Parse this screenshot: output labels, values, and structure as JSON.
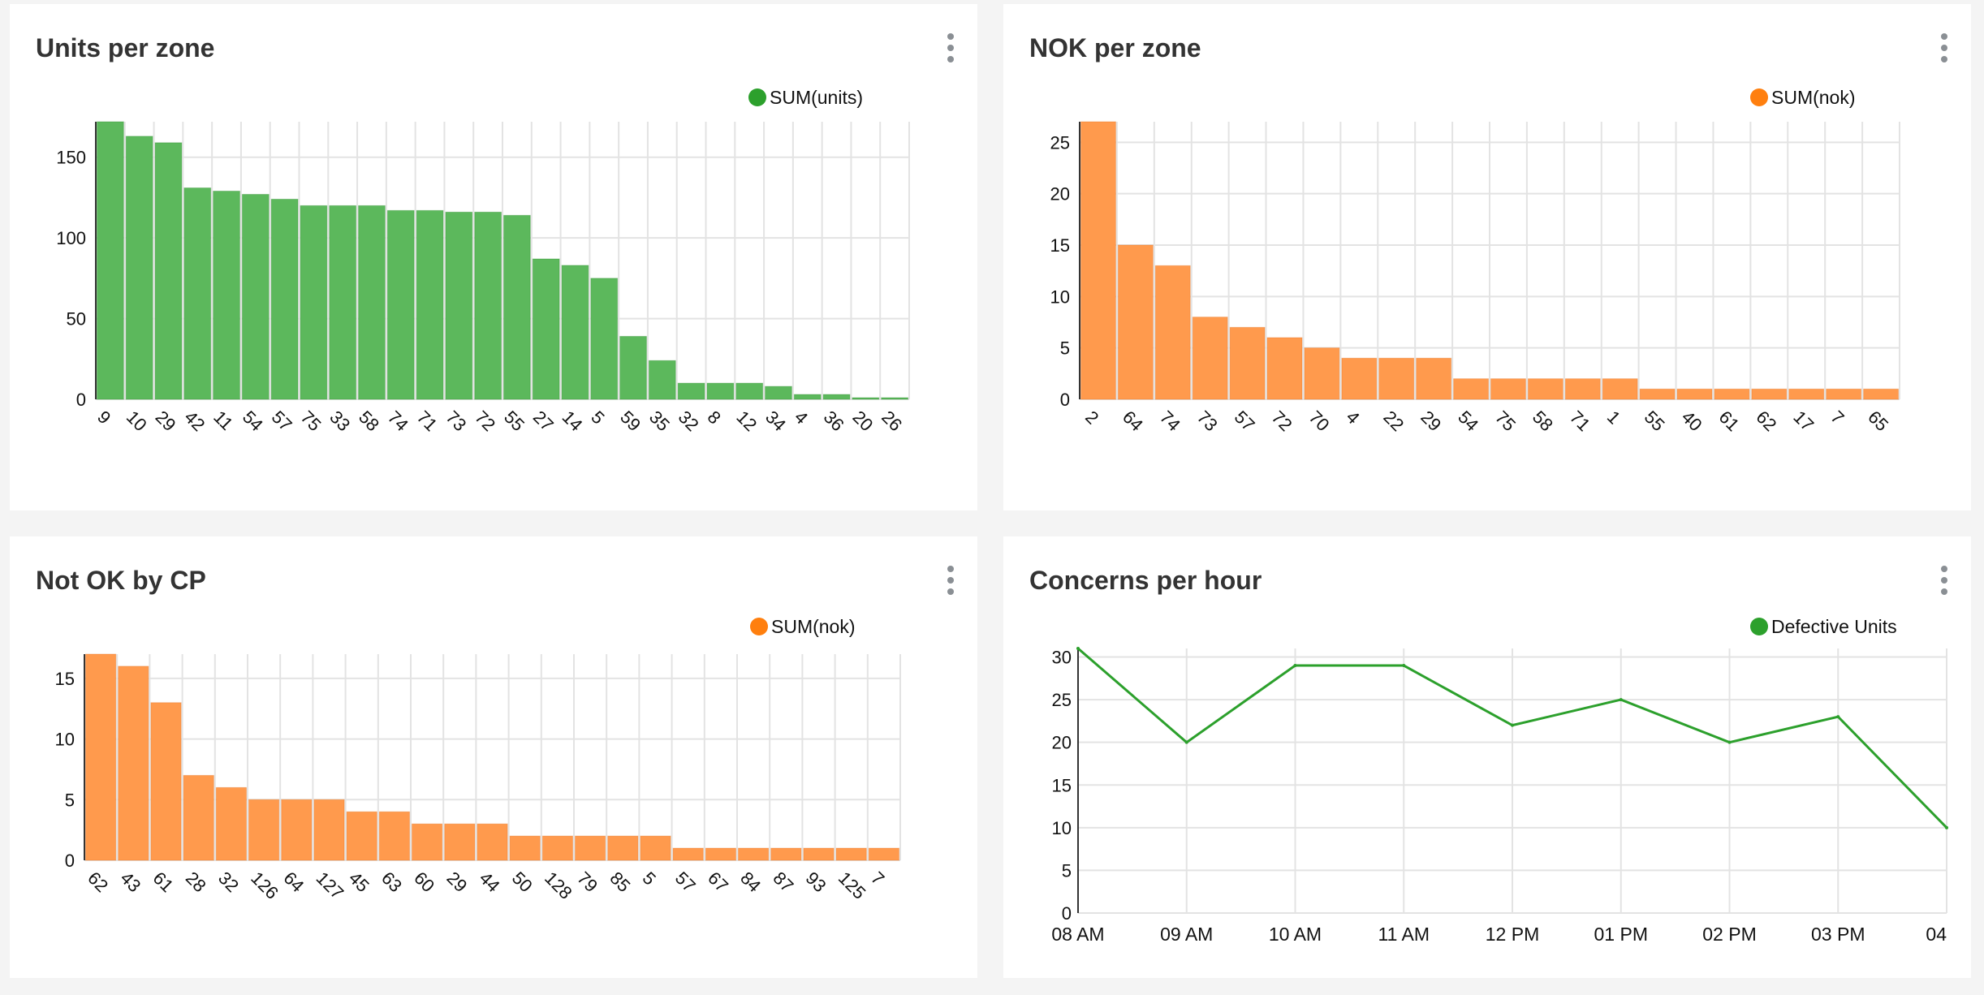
{
  "colors": {
    "green": "#2ca02c",
    "orange": "#ff7f0e"
  },
  "panels": [
    {
      "title": "Units per zone",
      "legend": "SUM(units)",
      "legend_color": "#2ca02c",
      "menu_icon": "kebab-menu-icon"
    },
    {
      "title": "NOK per zone",
      "legend": "SUM(nok)",
      "legend_color": "#ff7f0e",
      "menu_icon": "kebab-menu-icon"
    },
    {
      "title": "Not OK by CP",
      "legend": "SUM(nok)",
      "legend_color": "#ff7f0e",
      "menu_icon": "kebab-menu-icon"
    },
    {
      "title": "Concerns per hour",
      "legend": "Defective Units",
      "legend_color": "#2ca02c",
      "menu_icon": "kebab-menu-icon"
    }
  ],
  "chart_data": [
    {
      "type": "bar",
      "title": "Units per zone",
      "categories": [
        "9",
        "10",
        "29",
        "42",
        "11",
        "54",
        "57",
        "75",
        "33",
        "58",
        "74",
        "71",
        "73",
        "72",
        "55",
        "27",
        "14",
        "5",
        "59",
        "35",
        "32",
        "8",
        "12",
        "34",
        "4",
        "36",
        "20",
        "26"
      ],
      "series": [
        {
          "name": "SUM(units)",
          "values": [
            172,
            163,
            159,
            131,
            129,
            127,
            124,
            120,
            120,
            120,
            117,
            117,
            116,
            116,
            114,
            87,
            83,
            75,
            39,
            24,
            10,
            10,
            10,
            8,
            3,
            3,
            1,
            1
          ]
        }
      ],
      "ylim": [
        0,
        172
      ],
      "yticks": [
        0,
        50,
        100,
        150
      ],
      "grid": true,
      "legend_position": "top-right"
    },
    {
      "type": "bar",
      "title": "NOK per zone",
      "categories": [
        "2",
        "64",
        "74",
        "73",
        "57",
        "72",
        "70",
        "4",
        "22",
        "29",
        "54",
        "75",
        "58",
        "71",
        "1",
        "55",
        "40",
        "61",
        "62",
        "17",
        "7",
        "65"
      ],
      "series": [
        {
          "name": "SUM(nok)",
          "values": [
            27,
            15,
            13,
            8,
            7,
            6,
            5,
            4,
            4,
            4,
            2,
            2,
            2,
            2,
            2,
            1,
            1,
            1,
            1,
            1,
            1,
            1
          ]
        }
      ],
      "ylim": [
        0,
        27
      ],
      "yticks": [
        0,
        5,
        10,
        15,
        20,
        25
      ],
      "grid": true,
      "legend_position": "top-right"
    },
    {
      "type": "bar",
      "title": "Not OK by CP",
      "categories": [
        "62",
        "43",
        "61",
        "28",
        "32",
        "126",
        "64",
        "127",
        "45",
        "63",
        "60",
        "29",
        "44",
        "50",
        "128",
        "79",
        "85",
        "5",
        "57",
        "67",
        "84",
        "87",
        "93",
        "125",
        "7"
      ],
      "series": [
        {
          "name": "SUM(nok)",
          "values": [
            17,
            16,
            13,
            7,
            6,
            5,
            5,
            5,
            4,
            4,
            3,
            3,
            3,
            2,
            2,
            2,
            2,
            2,
            1,
            1,
            1,
            1,
            1,
            1,
            1
          ]
        }
      ],
      "ylim": [
        0,
        17
      ],
      "yticks": [
        0,
        5,
        10,
        15
      ],
      "grid": true,
      "legend_position": "top-right"
    },
    {
      "type": "line",
      "title": "Concerns per hour",
      "x": [
        "08 AM",
        "09 AM",
        "10 AM",
        "11 AM",
        "12 PM",
        "01 PM",
        "02 PM",
        "03 PM",
        "04"
      ],
      "series": [
        {
          "name": "Defective Units",
          "values": [
            31,
            20,
            29,
            29,
            22,
            25,
            20,
            23,
            10
          ]
        }
      ],
      "ylim": [
        0,
        31
      ],
      "yticks": [
        0,
        5,
        10,
        15,
        20,
        25,
        30
      ],
      "grid": true,
      "legend_position": "top-right"
    }
  ]
}
